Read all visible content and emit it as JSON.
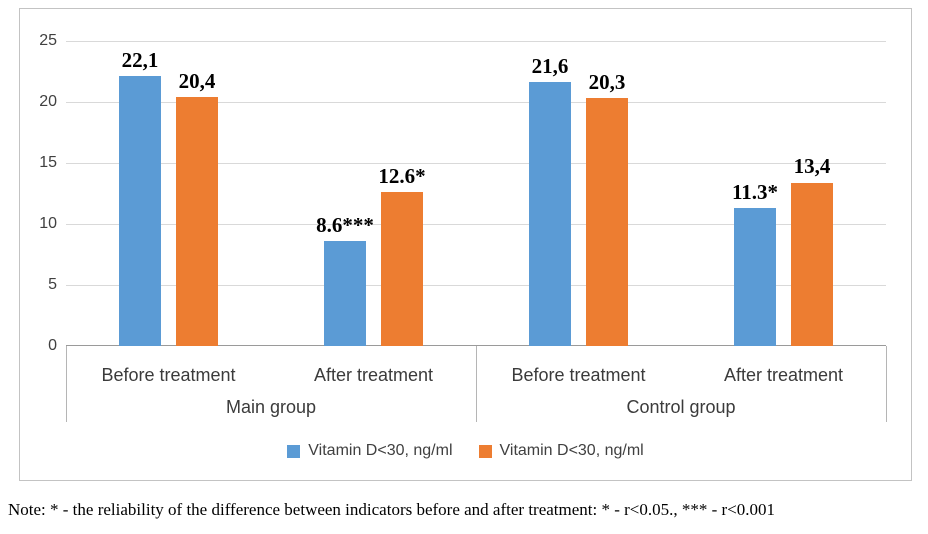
{
  "chart_data": {
    "type": "bar",
    "ylim": [
      0,
      25
    ],
    "yticks": [
      0,
      5,
      10,
      15,
      20,
      25
    ],
    "grid": true,
    "legend_position": "bottom",
    "series": [
      {
        "name": "Vitamin D<30, ng/ml",
        "color": "#5B9BD5"
      },
      {
        "name": "Vitamin D<30, ng/ml",
        "color": "#ED7D31"
      }
    ],
    "groups": [
      {
        "label": "Main group",
        "categories": [
          {
            "label": "Before treatment",
            "values": [
              22.1,
              20.4
            ],
            "value_labels": [
              "22,1",
              "20,4"
            ]
          },
          {
            "label": "After treatment",
            "values": [
              8.6,
              12.6
            ],
            "value_labels": [
              "8.6***",
              "12.6*"
            ]
          }
        ]
      },
      {
        "label": "Control group",
        "categories": [
          {
            "label": "Before treatment",
            "values": [
              21.6,
              20.3
            ],
            "value_labels": [
              "21,6",
              "20,3"
            ]
          },
          {
            "label": "After treatment",
            "values": [
              11.3,
              13.4
            ],
            "value_labels": [
              "11.3*",
              "13,4"
            ]
          }
        ]
      }
    ]
  },
  "note": "Note: * - the reliability of the difference between indicators before and after treatment: * - r<0.05., *** - r<0.001"
}
